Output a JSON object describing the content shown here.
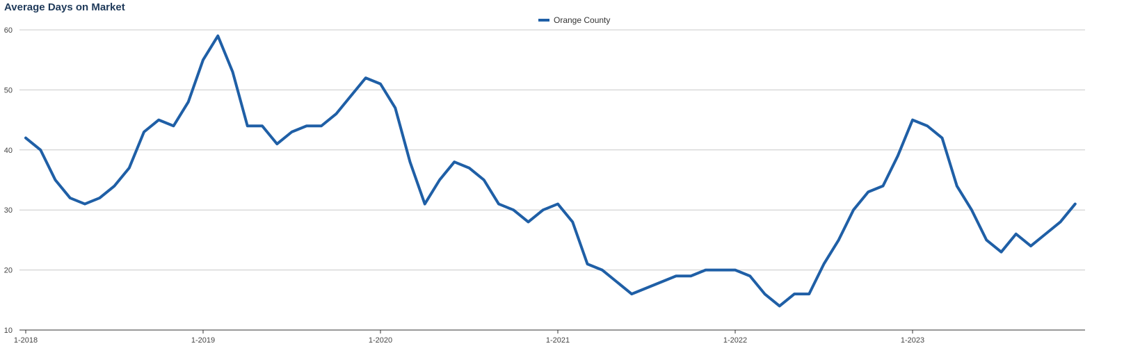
{
  "chart_data": {
    "type": "line",
    "title": "Average Days on Market",
    "x_tick_labels": [
      "1-2018",
      "1-2019",
      "1-2020",
      "1-2021",
      "1-2022",
      "1-2023"
    ],
    "y_ticks": [
      10,
      20,
      30,
      40,
      50,
      60
    ],
    "ylim": [
      10,
      60
    ],
    "grid": "horizontal",
    "legend_position": "top-center",
    "series": [
      {
        "name": "Orange County",
        "color": "#1f5fa6",
        "x": [
          "2018-01",
          "2018-02",
          "2018-03",
          "2018-04",
          "2018-05",
          "2018-06",
          "2018-07",
          "2018-08",
          "2018-09",
          "2018-10",
          "2018-11",
          "2018-12",
          "2019-01",
          "2019-02",
          "2019-03",
          "2019-04",
          "2019-05",
          "2019-06",
          "2019-07",
          "2019-08",
          "2019-09",
          "2019-10",
          "2019-11",
          "2019-12",
          "2020-01",
          "2020-02",
          "2020-03",
          "2020-04",
          "2020-05",
          "2020-06",
          "2020-07",
          "2020-08",
          "2020-09",
          "2020-10",
          "2020-11",
          "2020-12",
          "2021-01",
          "2021-02",
          "2021-03",
          "2021-04",
          "2021-05",
          "2021-06",
          "2021-07",
          "2021-08",
          "2021-09",
          "2021-10",
          "2021-11",
          "2021-12",
          "2022-01",
          "2022-02",
          "2022-03",
          "2022-04",
          "2022-05",
          "2022-06",
          "2022-07",
          "2022-08",
          "2022-09",
          "2022-10",
          "2022-11",
          "2022-12",
          "2023-01",
          "2023-02",
          "2023-03",
          "2023-04",
          "2023-05",
          "2023-06",
          "2023-07",
          "2023-08",
          "2023-09",
          "2023-10",
          "2023-11",
          "2023-12"
        ],
        "values": [
          42,
          40,
          35,
          32,
          31,
          32,
          34,
          37,
          43,
          45,
          44,
          48,
          55,
          59,
          53,
          44,
          44,
          41,
          43,
          44,
          44,
          46,
          49,
          52,
          51,
          47,
          38,
          31,
          35,
          38,
          37,
          35,
          31,
          30,
          28,
          30,
          31,
          28,
          21,
          20,
          18,
          16,
          17,
          18,
          19,
          19,
          20,
          20,
          20,
          19,
          16,
          14,
          16,
          16,
          21,
          25,
          30,
          33,
          34,
          39,
          45,
          44,
          42,
          34,
          30,
          25,
          23,
          26,
          24,
          26,
          28,
          31
        ]
      }
    ]
  }
}
